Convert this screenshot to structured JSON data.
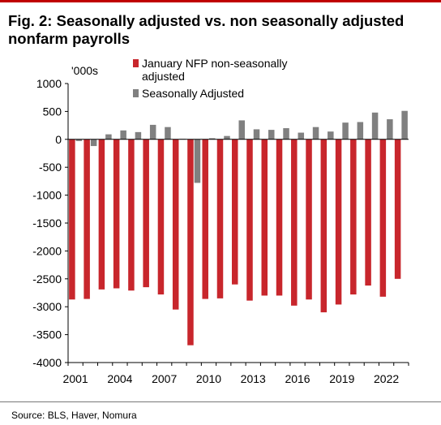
{
  "title": "Fig. 2: Seasonally adjusted vs. non seasonally adjusted nonfarm payrolls",
  "source": "Source: BLS, Haver, Nomura",
  "colors": {
    "accent_rule": "#c00000",
    "nsa_bar": "#c8262c",
    "sa_bar": "#808080",
    "axis": "#000000"
  },
  "chart_data": {
    "type": "bar",
    "unit_label": "'000s",
    "legend_position": "top-center",
    "grid": false,
    "ylim": [
      -4000,
      1000
    ],
    "yticks": [
      1000,
      500,
      0,
      -500,
      -1000,
      -1500,
      -2000,
      -2500,
      -3000,
      -3500,
      -4000
    ],
    "categories": [
      "2001",
      "2002",
      "2003",
      "2004",
      "2005",
      "2006",
      "2007",
      "2008",
      "2009",
      "2010",
      "2011",
      "2012",
      "2013",
      "2014",
      "2015",
      "2016",
      "2017",
      "2018",
      "2019",
      "2020",
      "2021",
      "2022",
      "2023"
    ],
    "xtick_labels": [
      "2001",
      "2004",
      "2007",
      "2010",
      "2013",
      "2016",
      "2019",
      "2022"
    ],
    "series": [
      {
        "name": "January NFP non-seasonally adjusted",
        "color": "#c8262c",
        "values": [
          -2870,
          -2860,
          -2690,
          -2670,
          -2710,
          -2650,
          -2780,
          -3050,
          -3690,
          -2860,
          -2850,
          -2600,
          -2890,
          -2800,
          -2800,
          -2980,
          -2870,
          -3100,
          -2960,
          -2780,
          -2620,
          -2820,
          -2500
        ]
      },
      {
        "name": "Seasonally Adjusted",
        "color": "#808080",
        "values": [
          -30,
          -120,
          90,
          160,
          130,
          260,
          220,
          10,
          -780,
          20,
          60,
          340,
          180,
          170,
          200,
          120,
          220,
          140,
          300,
          310,
          480,
          360,
          510
        ]
      }
    ]
  }
}
